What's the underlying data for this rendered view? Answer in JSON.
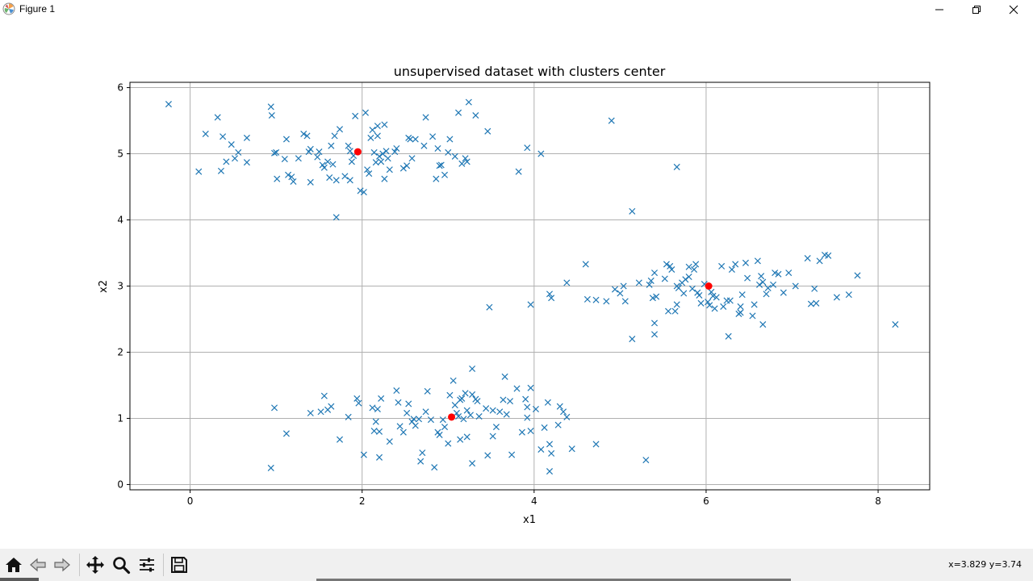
{
  "window": {
    "title": "Figure 1",
    "icons": {
      "app": "matplotlib-logo-icon",
      "minimize": "minimize-icon",
      "restore": "restore-icon",
      "close": "close-icon"
    }
  },
  "toolbar": {
    "buttons": [
      "home-icon",
      "back-arrow-icon",
      "forward-arrow-icon",
      "pan-move-icon",
      "zoom-magnifier-icon",
      "configure-subplots-icon",
      "save-floppy-icon"
    ],
    "coords": "x=3.829 y=3.74"
  },
  "colors": {
    "points": "#1f77b4",
    "centers": "#ff0000",
    "grid": "#b0b0b0"
  },
  "chart_data": {
    "type": "scatter",
    "title": "unsupervised dataset with clusters center",
    "xlabel": "x1",
    "ylabel": "x2",
    "xlim": [
      -0.7,
      8.6
    ],
    "ylim": [
      -0.08,
      6.08
    ],
    "xticks": [
      0,
      2,
      4,
      6,
      8
    ],
    "yticks": [
      0,
      1,
      2,
      3,
      4,
      5,
      6
    ],
    "grid": true,
    "series": [
      {
        "marker": "x",
        "color": "#1f77b4",
        "points": [
          [
            -0.25,
            5.75
          ],
          [
            0.1,
            4.73
          ],
          [
            0.18,
            5.3
          ],
          [
            0.32,
            5.55
          ],
          [
            0.36,
            4.74
          ],
          [
            0.38,
            5.26
          ],
          [
            0.42,
            4.88
          ],
          [
            0.48,
            5.14
          ],
          [
            0.52,
            4.93
          ],
          [
            0.56,
            5.02
          ],
          [
            0.66,
            5.24
          ],
          [
            0.66,
            4.87
          ],
          [
            0.94,
            5.71
          ],
          [
            0.95,
            5.58
          ],
          [
            0.98,
            5.01
          ],
          [
            1.0,
            5.02
          ],
          [
            1.01,
            4.62
          ],
          [
            1.1,
            4.92
          ],
          [
            1.12,
            5.22
          ],
          [
            1.14,
            4.68
          ],
          [
            1.18,
            4.65
          ],
          [
            1.2,
            4.58
          ],
          [
            1.26,
            4.93
          ],
          [
            1.32,
            5.3
          ],
          [
            1.36,
            5.27
          ],
          [
            1.38,
            5.03
          ],
          [
            1.4,
            5.07
          ],
          [
            1.4,
            4.57
          ],
          [
            1.48,
            4.95
          ],
          [
            1.5,
            5.03
          ],
          [
            1.54,
            4.83
          ],
          [
            1.56,
            4.79
          ],
          [
            1.6,
            4.88
          ],
          [
            1.62,
            4.64
          ],
          [
            1.64,
            5.12
          ],
          [
            1.66,
            4.84
          ],
          [
            1.68,
            5.27
          ],
          [
            1.7,
            4.6
          ],
          [
            1.74,
            5.37
          ],
          [
            1.7,
            4.04
          ],
          [
            1.8,
            4.66
          ],
          [
            1.84,
            5.12
          ],
          [
            1.86,
            5.04
          ],
          [
            1.86,
            4.6
          ],
          [
            1.88,
            4.88
          ],
          [
            1.9,
            4.97
          ],
          [
            1.92,
            5.57
          ],
          [
            1.98,
            4.44
          ],
          [
            2.02,
            4.42
          ],
          [
            2.04,
            5.62
          ],
          [
            2.06,
            4.76
          ],
          [
            2.08,
            4.7
          ],
          [
            2.1,
            5.24
          ],
          [
            2.12,
            5.36
          ],
          [
            2.14,
            5.02
          ],
          [
            2.16,
            4.87
          ],
          [
            2.18,
            5.27
          ],
          [
            2.18,
            5.42
          ],
          [
            2.2,
            4.96
          ],
          [
            2.22,
            4.88
          ],
          [
            2.24,
            5.0
          ],
          [
            2.26,
            5.44
          ],
          [
            2.26,
            4.62
          ],
          [
            2.28,
            5.04
          ],
          [
            2.3,
            4.93
          ],
          [
            2.32,
            4.76
          ],
          [
            2.38,
            5.03
          ],
          [
            2.4,
            5.08
          ],
          [
            2.48,
            4.78
          ],
          [
            2.52,
            4.82
          ],
          [
            2.54,
            5.24
          ],
          [
            2.56,
            5.22
          ],
          [
            2.58,
            4.93
          ],
          [
            2.62,
            5.22
          ],
          [
            2.72,
            5.12
          ],
          [
            2.74,
            5.55
          ],
          [
            2.82,
            5.26
          ],
          [
            2.86,
            4.62
          ],
          [
            2.88,
            5.08
          ],
          [
            2.9,
            4.82
          ],
          [
            2.92,
            4.83
          ],
          [
            2.96,
            4.68
          ],
          [
            3.0,
            5.02
          ],
          [
            3.02,
            5.22
          ],
          [
            3.08,
            4.96
          ],
          [
            3.12,
            5.62
          ],
          [
            3.16,
            4.85
          ],
          [
            3.2,
            4.93
          ],
          [
            3.24,
            5.78
          ],
          [
            3.22,
            4.88
          ],
          [
            3.32,
            5.58
          ],
          [
            3.46,
            5.34
          ],
          [
            3.82,
            4.73
          ],
          [
            3.92,
            5.09
          ],
          [
            4.08,
            5.0
          ],
          [
            4.9,
            5.5
          ],
          [
            5.66,
            4.8
          ],
          [
            5.14,
            4.13
          ],
          [
            3.48,
            2.68
          ],
          [
            3.96,
            2.72
          ],
          [
            4.18,
            2.88
          ],
          [
            4.2,
            2.82
          ],
          [
            4.38,
            3.05
          ],
          [
            4.6,
            3.33
          ],
          [
            4.62,
            2.8
          ],
          [
            4.72,
            2.79
          ],
          [
            4.84,
            2.77
          ],
          [
            4.94,
            2.95
          ],
          [
            5.0,
            2.89
          ],
          [
            5.04,
            3.0
          ],
          [
            5.06,
            2.77
          ],
          [
            5.14,
            2.2
          ],
          [
            5.22,
            3.05
          ],
          [
            5.34,
            3.02
          ],
          [
            5.36,
            3.08
          ],
          [
            5.38,
            2.82
          ],
          [
            5.4,
            3.2
          ],
          [
            5.4,
            2.44
          ],
          [
            5.4,
            2.27
          ],
          [
            5.42,
            2.84
          ],
          [
            5.52,
            3.11
          ],
          [
            5.54,
            3.33
          ],
          [
            5.56,
            2.62
          ],
          [
            5.58,
            3.3
          ],
          [
            5.6,
            3.25
          ],
          [
            5.64,
            2.62
          ],
          [
            5.66,
            3.0
          ],
          [
            5.66,
            2.72
          ],
          [
            5.68,
            2.97
          ],
          [
            5.72,
            3.05
          ],
          [
            5.74,
            2.89
          ],
          [
            5.76,
            3.1
          ],
          [
            5.8,
            3.14
          ],
          [
            5.8,
            3.29
          ],
          [
            5.84,
            2.96
          ],
          [
            5.86,
            3.25
          ],
          [
            5.88,
            3.33
          ],
          [
            5.9,
            2.9
          ],
          [
            5.92,
            2.86
          ],
          [
            5.94,
            2.74
          ],
          [
            5.98,
            3.03
          ],
          [
            6.02,
            2.76
          ],
          [
            6.04,
            2.71
          ],
          [
            6.06,
            2.91
          ],
          [
            6.08,
            2.85
          ],
          [
            6.1,
            2.66
          ],
          [
            6.12,
            2.83
          ],
          [
            6.18,
            3.3
          ],
          [
            6.2,
            2.69
          ],
          [
            6.24,
            2.78
          ],
          [
            6.26,
            2.24
          ],
          [
            6.28,
            2.78
          ],
          [
            6.3,
            3.25
          ],
          [
            6.34,
            3.33
          ],
          [
            6.38,
            2.58
          ],
          [
            6.4,
            2.69
          ],
          [
            6.4,
            2.6
          ],
          [
            6.42,
            2.87
          ],
          [
            6.46,
            3.35
          ],
          [
            6.48,
            3.12
          ],
          [
            6.54,
            2.55
          ],
          [
            6.56,
            2.72
          ],
          [
            6.6,
            3.38
          ],
          [
            6.62,
            3.02
          ],
          [
            6.64,
            3.15
          ],
          [
            6.66,
            2.42
          ],
          [
            6.66,
            3.06
          ],
          [
            6.7,
            2.88
          ],
          [
            6.72,
            2.97
          ],
          [
            6.78,
            3.02
          ],
          [
            6.8,
            3.2
          ],
          [
            6.84,
            3.18
          ],
          [
            6.9,
            2.9
          ],
          [
            6.96,
            3.2
          ],
          [
            7.04,
            3.0
          ],
          [
            7.18,
            3.42
          ],
          [
            7.22,
            2.73
          ],
          [
            7.26,
            2.96
          ],
          [
            7.28,
            2.74
          ],
          [
            7.32,
            3.38
          ],
          [
            7.38,
            3.47
          ],
          [
            7.42,
            3.46
          ],
          [
            7.52,
            2.83
          ],
          [
            7.66,
            2.87
          ],
          [
            7.76,
            3.16
          ],
          [
            8.2,
            2.42
          ],
          [
            0.94,
            0.25
          ],
          [
            0.98,
            1.16
          ],
          [
            1.12,
            0.77
          ],
          [
            1.4,
            1.08
          ],
          [
            1.52,
            1.1
          ],
          [
            1.56,
            1.34
          ],
          [
            1.6,
            1.13
          ],
          [
            1.64,
            1.18
          ],
          [
            1.74,
            0.68
          ],
          [
            1.84,
            1.02
          ],
          [
            1.94,
            1.3
          ],
          [
            1.96,
            1.23
          ],
          [
            2.02,
            0.45
          ],
          [
            2.12,
            1.16
          ],
          [
            2.14,
            0.81
          ],
          [
            2.16,
            0.95
          ],
          [
            2.18,
            1.14
          ],
          [
            2.2,
            0.8
          ],
          [
            2.22,
            1.3
          ],
          [
            2.2,
            0.41
          ],
          [
            2.32,
            0.65
          ],
          [
            2.4,
            1.42
          ],
          [
            2.42,
            1.24
          ],
          [
            2.44,
            0.88
          ],
          [
            2.48,
            0.79
          ],
          [
            2.52,
            1.08
          ],
          [
            2.54,
            1.22
          ],
          [
            2.58,
            0.95
          ],
          [
            2.6,
            0.99
          ],
          [
            2.62,
            0.89
          ],
          [
            2.66,
            0.99
          ],
          [
            2.68,
            0.35
          ],
          [
            2.7,
            0.48
          ],
          [
            2.74,
            1.1
          ],
          [
            2.76,
            1.41
          ],
          [
            2.8,
            0.98
          ],
          [
            2.84,
            0.26
          ],
          [
            2.88,
            0.79
          ],
          [
            2.9,
            0.75
          ],
          [
            2.94,
            0.98
          ],
          [
            2.96,
            0.87
          ],
          [
            3.0,
            0.62
          ],
          [
            3.02,
            1.35
          ],
          [
            3.06,
            1.57
          ],
          [
            3.08,
            1.2
          ],
          [
            3.1,
            1.08
          ],
          [
            3.12,
            1.03
          ],
          [
            3.14,
            1.28
          ],
          [
            3.14,
            0.68
          ],
          [
            3.16,
            1.3
          ],
          [
            3.18,
            0.99
          ],
          [
            3.2,
            1.38
          ],
          [
            3.22,
            1.12
          ],
          [
            3.22,
            0.72
          ],
          [
            3.26,
            1.05
          ],
          [
            3.28,
            1.36
          ],
          [
            3.28,
            1.75
          ],
          [
            3.28,
            0.32
          ],
          [
            3.32,
            1.29
          ],
          [
            3.34,
            1.26
          ],
          [
            3.36,
            1.03
          ],
          [
            3.44,
            1.15
          ],
          [
            3.46,
            0.44
          ],
          [
            3.52,
            1.12
          ],
          [
            3.52,
            0.73
          ],
          [
            3.56,
            0.87
          ],
          [
            3.6,
            1.1
          ],
          [
            3.64,
            1.28
          ],
          [
            3.66,
            1.63
          ],
          [
            3.68,
            1.06
          ],
          [
            3.72,
            1.26
          ],
          [
            3.74,
            0.45
          ],
          [
            3.8,
            1.45
          ],
          [
            3.86,
            0.79
          ],
          [
            3.9,
            1.29
          ],
          [
            3.92,
            1.17
          ],
          [
            3.92,
            1.01
          ],
          [
            3.96,
            1.46
          ],
          [
            3.96,
            0.81
          ],
          [
            4.02,
            1.14
          ],
          [
            4.08,
            0.53
          ],
          [
            4.12,
            0.86
          ],
          [
            4.16,
            1.24
          ],
          [
            4.18,
            0.61
          ],
          [
            4.2,
            0.47
          ],
          [
            4.18,
            0.2
          ],
          [
            4.28,
            0.9
          ],
          [
            4.3,
            1.18
          ],
          [
            4.34,
            1.1
          ],
          [
            4.38,
            1.02
          ],
          [
            4.44,
            0.54
          ],
          [
            4.72,
            0.61
          ],
          [
            5.3,
            0.37
          ]
        ]
      },
      {
        "marker": "o",
        "color": "#ff0000",
        "points": [
          [
            1.95,
            5.03
          ],
          [
            3.04,
            1.02
          ],
          [
            6.03,
            3.0
          ]
        ]
      }
    ]
  }
}
